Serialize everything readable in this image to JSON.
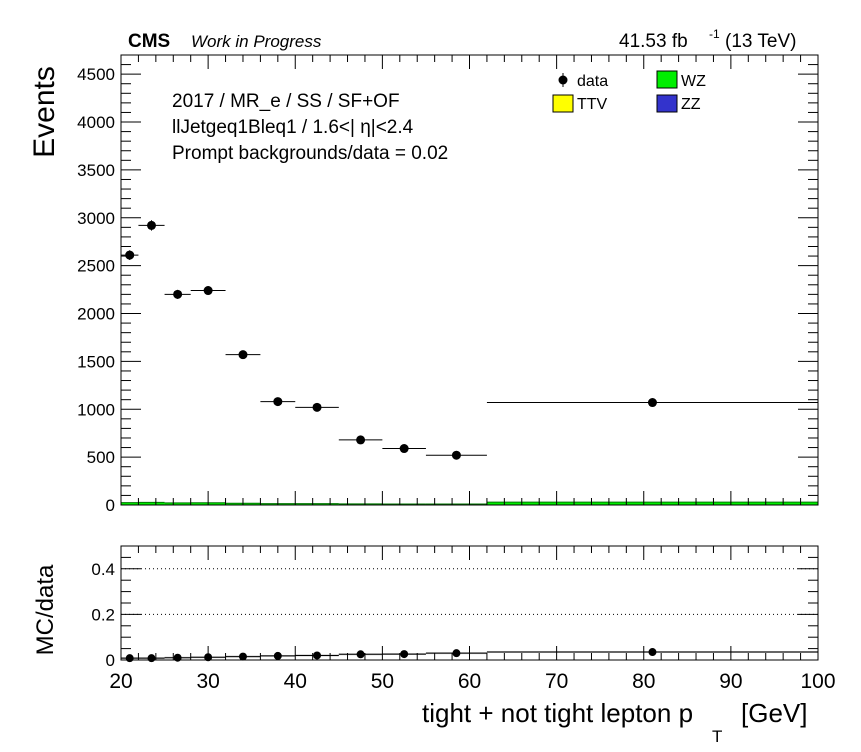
{
  "header": {
    "experiment": "CMS",
    "status": "Work in Progress",
    "lumi_value": "41.53 fb",
    "lumi_exp": "-1",
    "energy": "(13 TeV)"
  },
  "annotations": [
    "2017 / MR_e / SS / SF+OF",
    "llJetgeq1Bleq1 / 1.6<| η|<2.4",
    "Prompt backgrounds/data = 0.02"
  ],
  "legend": {
    "placement": "top-right",
    "entries": [
      {
        "label": "data",
        "kind": "marker"
      },
      {
        "label": "WZ",
        "kind": "fill",
        "color": "#00ee00"
      },
      {
        "label": "TTV",
        "kind": "fill",
        "color": "#ffff00"
      },
      {
        "label": "ZZ",
        "kind": "fill",
        "color": "#3333cc"
      }
    ]
  },
  "chart_data": [
    {
      "type": "scatter",
      "title": "",
      "xlabel_main": "tight + not tight lepton p",
      "xlabel_sub": "T",
      "xlabel_unit": "[GeV]",
      "ylabel": "Events",
      "xlim": [
        20,
        100
      ],
      "ylim": [
        0,
        4700
      ],
      "yticks": [
        0,
        500,
        1000,
        1500,
        2000,
        2500,
        3000,
        3500,
        4000,
        4500
      ],
      "grid": false,
      "series": [
        {
          "name": "data",
          "bins": [
            [
              20,
              22
            ],
            [
              22,
              25
            ],
            [
              25,
              28
            ],
            [
              28,
              32
            ],
            [
              32,
              36
            ],
            [
              36,
              40
            ],
            [
              40,
              45
            ],
            [
              45,
              50
            ],
            [
              50,
              55
            ],
            [
              55,
              62
            ],
            [
              62,
              100
            ]
          ],
          "x": [
            21.0,
            23.5,
            26.5,
            30.0,
            34.0,
            38.0,
            42.5,
            47.5,
            52.5,
            58.5,
            81.0
          ],
          "values": [
            2610,
            2920,
            2200,
            2240,
            1570,
            1080,
            1020,
            680,
            590,
            520,
            1070
          ],
          "errors": [
            51,
            54,
            47,
            47,
            40,
            33,
            32,
            26,
            24,
            23,
            33
          ]
        },
        {
          "name": "WZ",
          "bins": [
            [
              20,
              22
            ],
            [
              22,
              25
            ],
            [
              25,
              28
            ],
            [
              28,
              32
            ],
            [
              32,
              36
            ],
            [
              36,
              40
            ],
            [
              40,
              45
            ],
            [
              45,
              50
            ],
            [
              50,
              55
            ],
            [
              55,
              62
            ],
            [
              62,
              100
            ]
          ],
          "values": [
            25,
            28,
            22,
            24,
            18,
            14,
            14,
            12,
            10,
            10,
            30
          ]
        }
      ]
    },
    {
      "type": "scatter",
      "title": "",
      "xlabel": "tight + not tight lepton p T [GeV]",
      "ylabel": "MC/data",
      "xlim": [
        20,
        100
      ],
      "ylim": [
        0,
        0.5
      ],
      "yticks": [
        0,
        0.2,
        0.4
      ],
      "xticks": [
        20,
        30,
        40,
        50,
        60,
        70,
        80,
        90,
        100
      ],
      "grid": "dotted horizontal at 0.2 and 0.4",
      "series": [
        {
          "name": "MC/data",
          "x": [
            21.0,
            23.5,
            26.5,
            30.0,
            34.0,
            38.0,
            42.5,
            47.5,
            52.5,
            58.5,
            81.0
          ],
          "values": [
            0.008,
            0.008,
            0.01,
            0.012,
            0.015,
            0.018,
            0.02,
            0.025,
            0.026,
            0.03,
            0.035
          ]
        }
      ]
    }
  ]
}
